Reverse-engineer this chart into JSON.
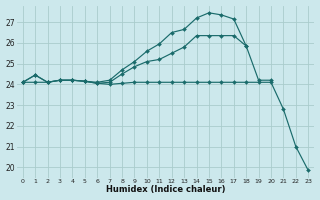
{
  "xlabel": "Humidex (Indice chaleur)",
  "background_color": "#cce8ec",
  "grid_color": "#aacccc",
  "line_color": "#1a6b6b",
  "xlim": [
    -0.5,
    23.5
  ],
  "ylim": [
    19.5,
    27.8
  ],
  "yticks": [
    20,
    21,
    22,
    23,
    24,
    25,
    26,
    27
  ],
  "xticks": [
    0,
    1,
    2,
    3,
    4,
    5,
    6,
    7,
    8,
    9,
    10,
    11,
    12,
    13,
    14,
    15,
    16,
    17,
    18,
    19,
    20,
    21,
    22,
    23
  ],
  "line1_x": [
    0,
    1,
    2,
    3,
    4,
    5,
    6,
    7,
    8,
    9,
    10,
    11,
    12,
    13,
    14,
    15,
    16,
    17,
    18,
    19,
    20,
    21,
    22,
    23
  ],
  "line1_y": [
    24.1,
    24.45,
    24.1,
    24.2,
    24.2,
    24.15,
    24.05,
    24.0,
    24.05,
    24.1,
    24.1,
    24.1,
    24.1,
    24.1,
    24.1,
    24.1,
    24.1,
    24.1,
    24.1,
    24.1,
    24.1,
    22.8,
    21.0,
    19.85
  ],
  "line2_x": [
    0,
    1,
    2,
    3,
    4,
    5,
    6,
    7,
    8,
    9,
    10,
    11,
    12,
    13,
    14,
    15,
    16,
    17,
    18,
    19,
    20
  ],
  "line2_y": [
    24.1,
    24.1,
    24.1,
    24.2,
    24.2,
    24.15,
    24.05,
    24.1,
    24.5,
    24.85,
    25.1,
    25.2,
    25.5,
    25.8,
    26.35,
    26.35,
    26.35,
    26.35,
    25.85,
    24.2,
    24.2
  ],
  "line3_x": [
    0,
    1,
    2,
    3,
    4,
    5,
    6,
    7,
    8,
    9,
    10,
    11,
    12,
    13,
    14,
    15,
    16,
    17,
    18
  ],
  "line3_y": [
    24.1,
    24.45,
    24.1,
    24.2,
    24.2,
    24.15,
    24.1,
    24.2,
    24.7,
    25.1,
    25.6,
    25.95,
    26.5,
    26.65,
    27.2,
    27.45,
    27.35,
    27.15,
    25.85
  ]
}
